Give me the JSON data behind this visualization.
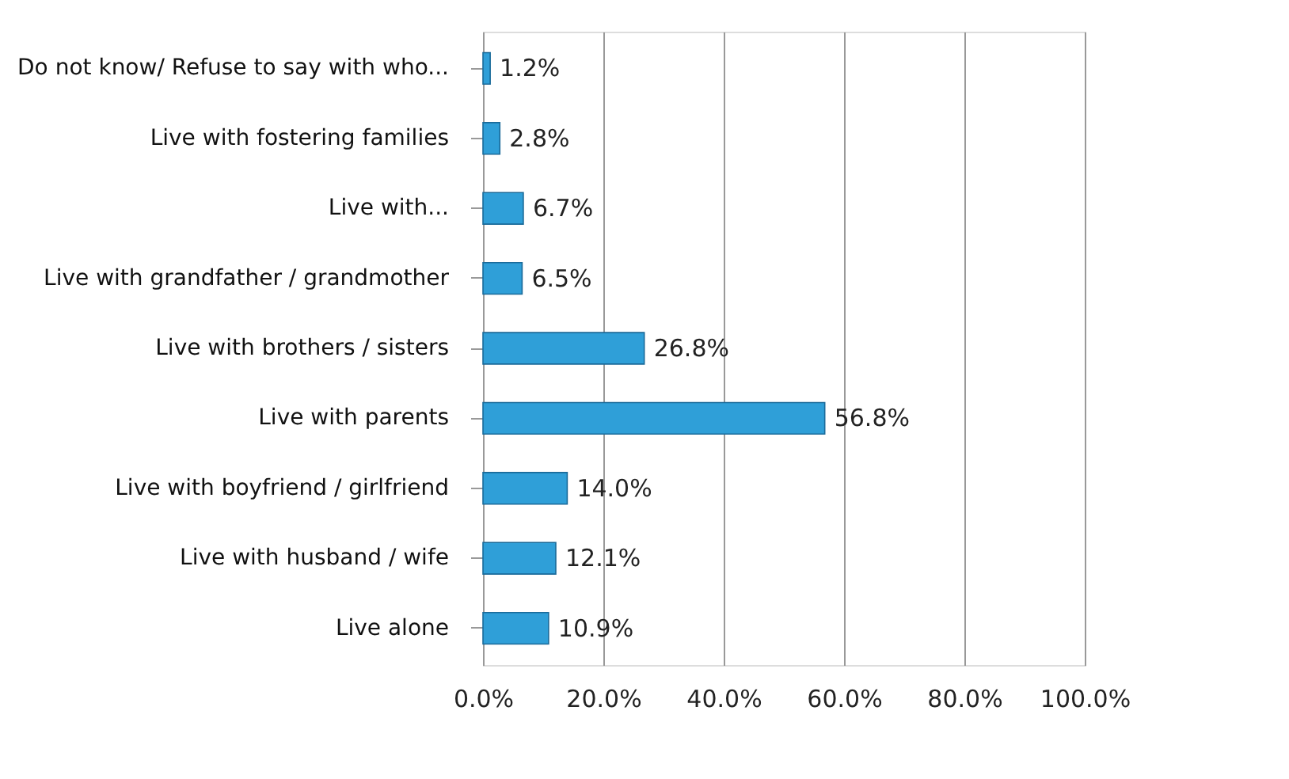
{
  "chart_data": {
    "type": "bar",
    "orientation": "horizontal",
    "categories": [
      "Do not know/ Refuse to say with who...",
      "Live with fostering families",
      "Live with...",
      "Live with grandfather / grandmother",
      "Live with brothers / sisters",
      "Live with parents",
      "Live with boyfriend / girlfriend",
      "Live with husband / wife",
      "Live alone"
    ],
    "values": [
      1.2,
      2.8,
      6.7,
      6.5,
      26.8,
      56.8,
      14.0,
      12.1,
      10.9
    ],
    "value_labels": [
      "1.2%",
      "2.8%",
      "6.7%",
      "6.5%",
      "26.8%",
      "56.8%",
      "14.0%",
      "12.1%",
      "10.9%"
    ],
    "color": "#2f9fd8",
    "xlim": [
      0,
      100
    ],
    "xticks": [
      {
        "value": 0,
        "label": "0.0%"
      },
      {
        "value": 20,
        "label": "20.0%"
      },
      {
        "value": 40,
        "label": "40.0%"
      },
      {
        "value": 60,
        "label": "60.0%"
      },
      {
        "value": 80,
        "label": "80.0%"
      },
      {
        "value": 100,
        "label": "100.0%"
      }
    ],
    "grid": "x"
  }
}
